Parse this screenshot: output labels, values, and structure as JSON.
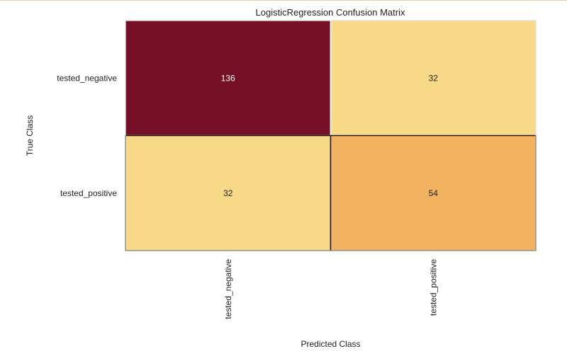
{
  "chart_data": {
    "type": "heatmap",
    "title": "LogisticRegression Confusion Matrix",
    "xlabel": "Predicted Class",
    "ylabel": "True Class",
    "x_categories": [
      "tested_negative",
      "tested_positive"
    ],
    "y_categories": [
      "tested_negative",
      "tested_positive"
    ],
    "values": [
      [
        136,
        32
      ],
      [
        32,
        54
      ]
    ],
    "colors": {
      "high": "#750f26",
      "low": "#f8d988",
      "mid": "#f2b25f",
      "dark_text": "#222222",
      "light_text": "#ffffff"
    },
    "grid": false,
    "legend": "none"
  }
}
